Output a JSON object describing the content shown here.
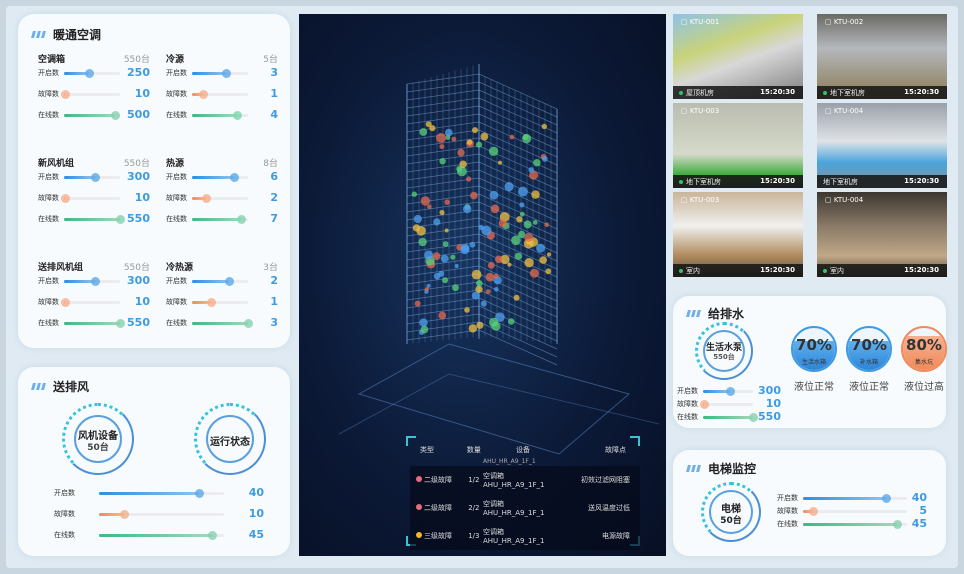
{
  "hvac": {
    "title": "暖通空调",
    "groups": [
      {
        "name": "空调箱",
        "total": "550台",
        "max": 550,
        "rows": [
          {
            "label": "开启数",
            "value": 250
          },
          {
            "label": "故障数",
            "value": 10
          },
          {
            "label": "在线数",
            "value": 500
          }
        ]
      },
      {
        "name": "冷源",
        "total": "5台",
        "max": 5,
        "rows": [
          {
            "label": "开启数",
            "value": 3
          },
          {
            "label": "故障数",
            "value": 1
          },
          {
            "label": "在线数",
            "value": 4
          }
        ]
      },
      {
        "name": "新风机组",
        "total": "550台",
        "max": 550,
        "rows": [
          {
            "label": "开启数",
            "value": 300
          },
          {
            "label": "故障数",
            "value": 10
          },
          {
            "label": "在线数",
            "value": 550
          }
        ]
      },
      {
        "name": "热源",
        "total": "8台",
        "max": 8,
        "rows": [
          {
            "label": "开启数",
            "value": 6
          },
          {
            "label": "故障数",
            "value": 2
          },
          {
            "label": "在线数",
            "value": 7
          }
        ]
      },
      {
        "name": "送排风机组",
        "total": "550台",
        "max": 550,
        "rows": [
          {
            "label": "开启数",
            "value": 300
          },
          {
            "label": "故障数",
            "value": 10
          },
          {
            "label": "在线数",
            "value": 550
          }
        ]
      },
      {
        "name": "冷热源",
        "total": "3台",
        "max": 3,
        "rows": [
          {
            "label": "开启数",
            "value": 2
          },
          {
            "label": "故障数",
            "value": 1
          },
          {
            "label": "在线数",
            "value": 3
          }
        ]
      }
    ]
  },
  "ventilation": {
    "title": "送排风",
    "device_label": "风机设备",
    "device_count": "50台",
    "status_label": "运行状态",
    "max": 50,
    "rows": [
      {
        "label": "开启数",
        "value": 40
      },
      {
        "label": "故障数",
        "value": 10
      },
      {
        "label": "在线数",
        "value": 45
      }
    ]
  },
  "faults": {
    "headers": [
      "类型",
      "数量",
      "设备",
      "故障点"
    ],
    "partial_row": "AHU_HR_A9_1F_1",
    "rows": [
      {
        "level": "二级故障",
        "color": "#e66b7c",
        "count": "1/2",
        "device": "空调箱",
        "device_code": "AHU_HR_A9_1F_1",
        "point": "初效过滤网阻塞"
      },
      {
        "level": "二级故障",
        "color": "#e66b7c",
        "count": "2/2",
        "device": "空调箱",
        "device_code": "AHU_HR_A9_1F_1",
        "point": "送风温度过低"
      },
      {
        "level": "三级故障",
        "color": "#f5b71f",
        "count": "1/3",
        "device": "空调箱",
        "device_code": "AHU_HR_A9_1F_1",
        "point": "电源故障"
      }
    ]
  },
  "cameras": [
    {
      "id": "KTU-001",
      "location": "屋顶机房",
      "time": "15:20:30",
      "online": true
    },
    {
      "id": "KTU-002",
      "location": "地下室机房",
      "time": "15:20:30",
      "online": true
    },
    {
      "id": "KTU-003",
      "location": "地下室机房",
      "time": "15:20:30",
      "online": true
    },
    {
      "id": "KTU-004",
      "location": "地下室机房",
      "time": "15:20:30",
      "online": false
    },
    {
      "id": "KTU-003",
      "location": "室内",
      "time": "15:20:30",
      "online": true
    },
    {
      "id": "KTU-004",
      "location": "室内",
      "time": "15:20:30",
      "online": true
    }
  ],
  "water": {
    "title": "给排水",
    "device_label": "生活水泵",
    "device_count": "550台",
    "max": 550,
    "rows": [
      {
        "label": "开启数",
        "value": 300
      },
      {
        "label": "故障数",
        "value": 10
      },
      {
        "label": "在线数",
        "value": 550
      }
    ],
    "tanks": [
      {
        "percent": "70%",
        "level": 0.7,
        "name": "生活水箱",
        "status": "液位正常",
        "color": "#3d9be3"
      },
      {
        "percent": "70%",
        "level": 0.7,
        "name": "补水箱",
        "status": "液位正常",
        "color": "#3d9be3"
      },
      {
        "percent": "80%",
        "level": 0.8,
        "name": "集水坑",
        "status": "液位过高",
        "color": "#f08a5a"
      }
    ]
  },
  "elevator": {
    "title": "电梯监控",
    "device_label": "电梯",
    "device_count": "50台",
    "max": 50,
    "rows": [
      {
        "label": "开启数",
        "value": 40
      },
      {
        "label": "故障数",
        "value": 5
      },
      {
        "label": "在线数",
        "value": 45
      }
    ]
  }
}
